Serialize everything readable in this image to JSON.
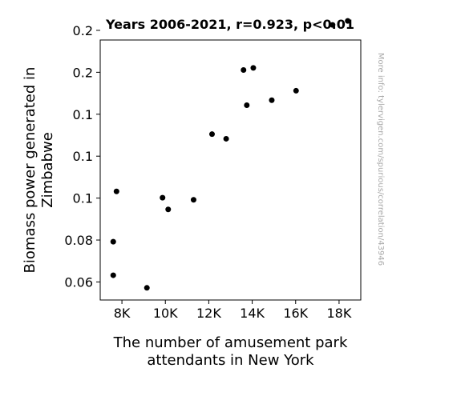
{
  "chart_data": {
    "type": "scatter",
    "title": "Years 2006-2021, r=0.923, p<0.01",
    "xlabel_lines": [
      "The number of amusement park",
      "attendants in New York"
    ],
    "ylabel_lines": [
      "Biomass power generated in",
      "Zimbabwe"
    ],
    "watermark": "More info: tylervigen.com/spurious/correlation/43946",
    "xlim": [
      7000,
      19000
    ],
    "ylim": [
      0.0514,
      0.1754
    ],
    "x_ticks": [
      {
        "value": 8000,
        "label": "8K"
      },
      {
        "value": 10000,
        "label": "10K"
      },
      {
        "value": 12000,
        "label": "12K"
      },
      {
        "value": 14000,
        "label": "14K"
      },
      {
        "value": 16000,
        "label": "16K"
      },
      {
        "value": 18000,
        "label": "18K"
      }
    ],
    "y_ticks": [
      {
        "value": 0.06,
        "label": "0.06"
      },
      {
        "value": 0.08,
        "label": "0.08"
      },
      {
        "value": 0.1,
        "label": "0.1"
      },
      {
        "value": 0.12,
        "label": "0.1"
      },
      {
        "value": 0.14,
        "label": "0.1"
      },
      {
        "value": 0.16,
        "label": "0.2"
      },
      {
        "value": 0.18,
        "label": "0.2"
      }
    ],
    "marker_color": "#000000",
    "points": [
      {
        "x": 7600,
        "y": 0.0632
      },
      {
        "x": 7600,
        "y": 0.0792
      },
      {
        "x": 7750,
        "y": 0.1032
      },
      {
        "x": 9150,
        "y": 0.0572
      },
      {
        "x": 9870,
        "y": 0.1002
      },
      {
        "x": 10130,
        "y": 0.0946
      },
      {
        "x": 11300,
        "y": 0.0992
      },
      {
        "x": 12150,
        "y": 0.1305
      },
      {
        "x": 12800,
        "y": 0.1283
      },
      {
        "x": 13600,
        "y": 0.1611
      },
      {
        "x": 13750,
        "y": 0.1443
      },
      {
        "x": 14050,
        "y": 0.1621
      },
      {
        "x": 14900,
        "y": 0.1467
      },
      {
        "x": 16020,
        "y": 0.1512
      },
      {
        "x": 17700,
        "y": 0.1826
      },
      {
        "x": 18400,
        "y": 0.1845
      }
    ]
  }
}
